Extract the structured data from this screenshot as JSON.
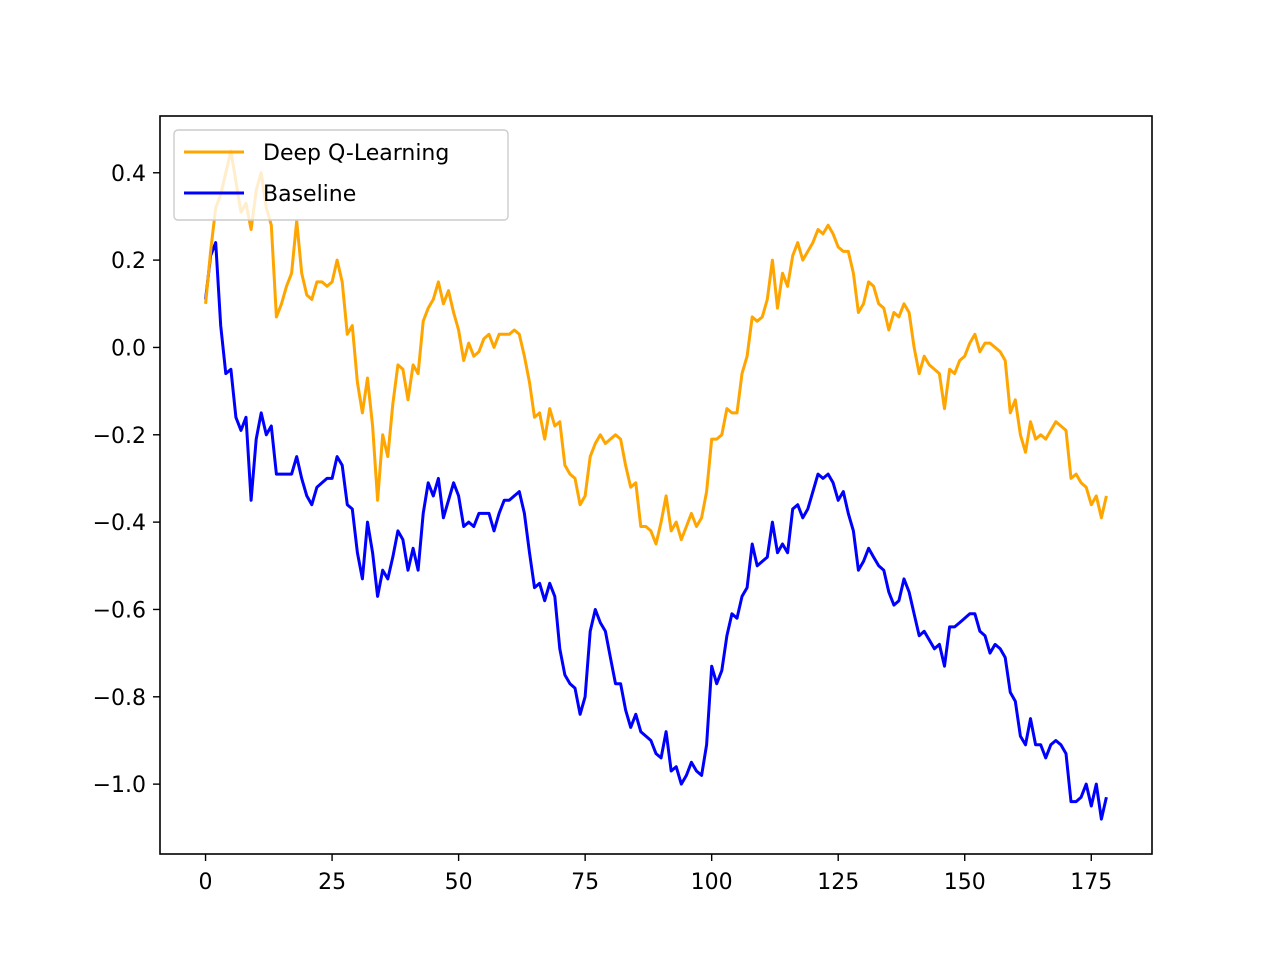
{
  "chart_data": {
    "type": "line",
    "title": "",
    "xlabel": "",
    "ylabel": "",
    "xlim": [
      -9,
      187
    ],
    "ylim": [
      -1.16,
      0.53
    ],
    "xticks": [
      0,
      25,
      50,
      75,
      100,
      125,
      150,
      175
    ],
    "yticks": [
      0.4,
      0.2,
      0.0,
      -0.2,
      -0.4,
      -0.6,
      -0.8,
      -1.0
    ],
    "xtick_labels": [
      "0",
      "25",
      "50",
      "75",
      "100",
      "125",
      "150",
      "175"
    ],
    "ytick_labels": [
      "0.4",
      "0.2",
      "0.0",
      "−0.2",
      "−0.4",
      "−0.6",
      "−0.8",
      "−1.0"
    ],
    "grid": false,
    "legend_position": "upper-left",
    "series": [
      {
        "name": "Deep Q-Learning",
        "color": "#ffa500",
        "x_start": 0,
        "x_step": 1,
        "values": [
          0.1,
          0.22,
          0.32,
          0.35,
          0.4,
          0.45,
          0.38,
          0.31,
          0.33,
          0.27,
          0.36,
          0.4,
          0.32,
          0.28,
          0.07,
          0.1,
          0.14,
          0.17,
          0.29,
          0.17,
          0.12,
          0.11,
          0.15,
          0.15,
          0.14,
          0.15,
          0.2,
          0.15,
          0.03,
          0.05,
          -0.08,
          -0.15,
          -0.07,
          -0.18,
          -0.35,
          -0.2,
          -0.25,
          -0.13,
          -0.04,
          -0.05,
          -0.12,
          -0.04,
          -0.06,
          0.06,
          0.09,
          0.11,
          0.15,
          0.1,
          0.13,
          0.08,
          0.04,
          -0.03,
          0.01,
          -0.02,
          -0.01,
          0.02,
          0.03,
          0.0,
          0.03,
          0.03,
          0.03,
          0.04,
          0.03,
          -0.02,
          -0.08,
          -0.16,
          -0.15,
          -0.21,
          -0.14,
          -0.18,
          -0.17,
          -0.27,
          -0.29,
          -0.3,
          -0.36,
          -0.34,
          -0.25,
          -0.22,
          -0.2,
          -0.22,
          -0.21,
          -0.2,
          -0.21,
          -0.27,
          -0.32,
          -0.31,
          -0.41,
          -0.41,
          -0.42,
          -0.45,
          -0.4,
          -0.34,
          -0.42,
          -0.4,
          -0.44,
          -0.41,
          -0.38,
          -0.41,
          -0.39,
          -0.33,
          -0.21,
          -0.21,
          -0.2,
          -0.14,
          -0.15,
          -0.15,
          -0.06,
          -0.02,
          0.07,
          0.06,
          0.07,
          0.11,
          0.2,
          0.09,
          0.17,
          0.14,
          0.21,
          0.24,
          0.2,
          0.22,
          0.24,
          0.27,
          0.26,
          0.28,
          0.26,
          0.23,
          0.22,
          0.22,
          0.17,
          0.08,
          0.1,
          0.15,
          0.14,
          0.1,
          0.09,
          0.04,
          0.08,
          0.07,
          0.1,
          0.08,
          0.0,
          -0.06,
          -0.02,
          -0.04,
          -0.05,
          -0.06,
          -0.14,
          -0.05,
          -0.06,
          -0.03,
          -0.02,
          0.01,
          0.03,
          -0.01,
          0.01,
          0.01,
          0.0,
          -0.01,
          -0.03,
          -0.15,
          -0.12,
          -0.2,
          -0.24,
          -0.17,
          -0.21,
          -0.2,
          -0.21,
          -0.19,
          -0.17,
          -0.18,
          -0.19,
          -0.3,
          -0.29,
          -0.31,
          -0.32,
          -0.36,
          -0.34,
          -0.39,
          -0.34
        ]
      },
      {
        "name": "Baseline",
        "color": "#0000ff",
        "x_start": 0,
        "x_step": 1,
        "values": [
          0.11,
          0.21,
          0.24,
          0.05,
          -0.06,
          -0.05,
          -0.16,
          -0.19,
          -0.16,
          -0.35,
          -0.21,
          -0.15,
          -0.2,
          -0.18,
          -0.29,
          -0.29,
          -0.29,
          -0.29,
          -0.25,
          -0.3,
          -0.34,
          -0.36,
          -0.32,
          -0.31,
          -0.3,
          -0.3,
          -0.25,
          -0.27,
          -0.36,
          -0.37,
          -0.47,
          -0.53,
          -0.4,
          -0.47,
          -0.57,
          -0.51,
          -0.53,
          -0.48,
          -0.42,
          -0.44,
          -0.51,
          -0.46,
          -0.51,
          -0.38,
          -0.31,
          -0.34,
          -0.3,
          -0.39,
          -0.35,
          -0.31,
          -0.34,
          -0.41,
          -0.4,
          -0.41,
          -0.38,
          -0.38,
          -0.38,
          -0.42,
          -0.38,
          -0.35,
          -0.35,
          -0.34,
          -0.33,
          -0.38,
          -0.47,
          -0.55,
          -0.54,
          -0.58,
          -0.54,
          -0.57,
          -0.69,
          -0.75,
          -0.77,
          -0.78,
          -0.84,
          -0.8,
          -0.65,
          -0.6,
          -0.63,
          -0.65,
          -0.71,
          -0.77,
          -0.77,
          -0.83,
          -0.87,
          -0.84,
          -0.88,
          -0.89,
          -0.9,
          -0.93,
          -0.94,
          -0.88,
          -0.97,
          -0.96,
          -1.0,
          -0.98,
          -0.95,
          -0.97,
          -0.98,
          -0.91,
          -0.73,
          -0.77,
          -0.74,
          -0.66,
          -0.61,
          -0.62,
          -0.57,
          -0.55,
          -0.45,
          -0.5,
          -0.49,
          -0.48,
          -0.4,
          -0.47,
          -0.45,
          -0.47,
          -0.37,
          -0.36,
          -0.39,
          -0.37,
          -0.33,
          -0.29,
          -0.3,
          -0.29,
          -0.31,
          -0.35,
          -0.33,
          -0.38,
          -0.42,
          -0.51,
          -0.49,
          -0.46,
          -0.48,
          -0.5,
          -0.51,
          -0.56,
          -0.59,
          -0.58,
          -0.53,
          -0.56,
          -0.61,
          -0.66,
          -0.65,
          -0.67,
          -0.69,
          -0.68,
          -0.73,
          -0.64,
          -0.64,
          -0.63,
          -0.62,
          -0.61,
          -0.61,
          -0.65,
          -0.66,
          -0.7,
          -0.68,
          -0.69,
          -0.71,
          -0.79,
          -0.81,
          -0.89,
          -0.91,
          -0.85,
          -0.91,
          -0.91,
          -0.94,
          -0.91,
          -0.9,
          -0.91,
          -0.93,
          -1.04,
          -1.04,
          -1.03,
          -1.0,
          -1.05,
          -1.0,
          -1.08,
          -1.03
        ]
      }
    ]
  }
}
